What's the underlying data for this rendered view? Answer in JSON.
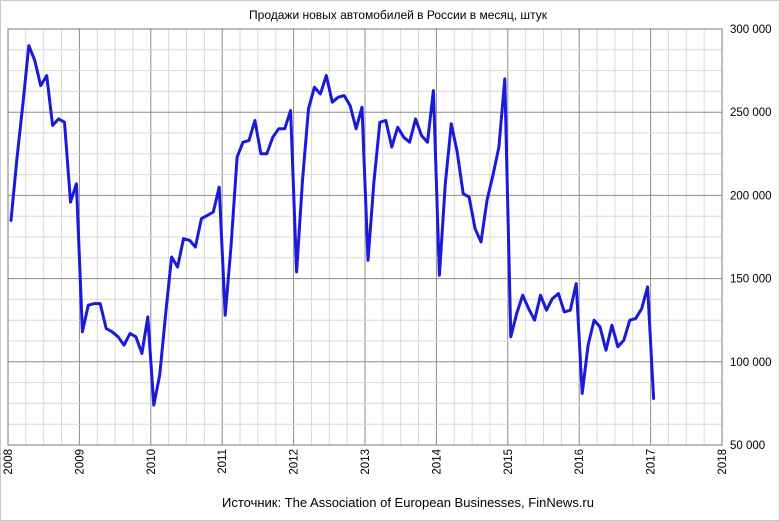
{
  "chart_data": {
    "type": "line",
    "title": "Продажи новых автомобилей в России в месяц, штук",
    "source": "Источник: The Association of European Businesses, FinNews.ru",
    "xlabel": "",
    "ylabel": "",
    "xlim": [
      2008,
      2018
    ],
    "ylim": [
      50000,
      300000
    ],
    "x_ticks": [
      "2008",
      "2009",
      "2010",
      "2011",
      "2012",
      "2013",
      "2014",
      "2015",
      "2016",
      "2017",
      "2018"
    ],
    "y_ticks": [
      "50 000",
      "100 000",
      "150 000",
      "200 000",
      "250 000",
      "300 000"
    ],
    "grid": true,
    "legend": "none",
    "line_color": "#1a1adc",
    "series": [
      {
        "start": "2008-01",
        "values": [
          185000,
          222000,
          255000,
          290000,
          281000,
          266000,
          272000,
          242000,
          246000,
          244000,
          196000,
          207000,
          118000,
          134000,
          135000,
          135000,
          120000,
          118000,
          115000,
          110000,
          117000,
          115000,
          105000,
          127000,
          74000,
          92000,
          129000,
          163000,
          157000,
          174000,
          173000,
          169000,
          186000,
          188000,
          190000,
          205000,
          128000,
          170000,
          223000,
          232000,
          233000,
          245000,
          225000,
          225000,
          235000,
          240000,
          240000,
          251000,
          154000,
          209000,
          252000,
          265000,
          261000,
          272000,
          256000,
          259000,
          260000,
          254000,
          240000,
          253000,
          161000,
          208000,
          244000,
          245000,
          229000,
          241000,
          235000,
          232000,
          246000,
          236000,
          232000,
          263000,
          152000,
          207000,
          243000,
          226000,
          201000,
          199000,
          180000,
          172000,
          197000,
          212000,
          229000,
          270000,
          115000,
          129000,
          140000,
          132000,
          125000,
          140000,
          131000,
          138000,
          141000,
          130000,
          131000,
          147000,
          81000,
          110000,
          125000,
          121000,
          107000,
          122000,
          109000,
          113000,
          125000,
          126000,
          132000,
          145000,
          78000
        ]
      }
    ]
  }
}
